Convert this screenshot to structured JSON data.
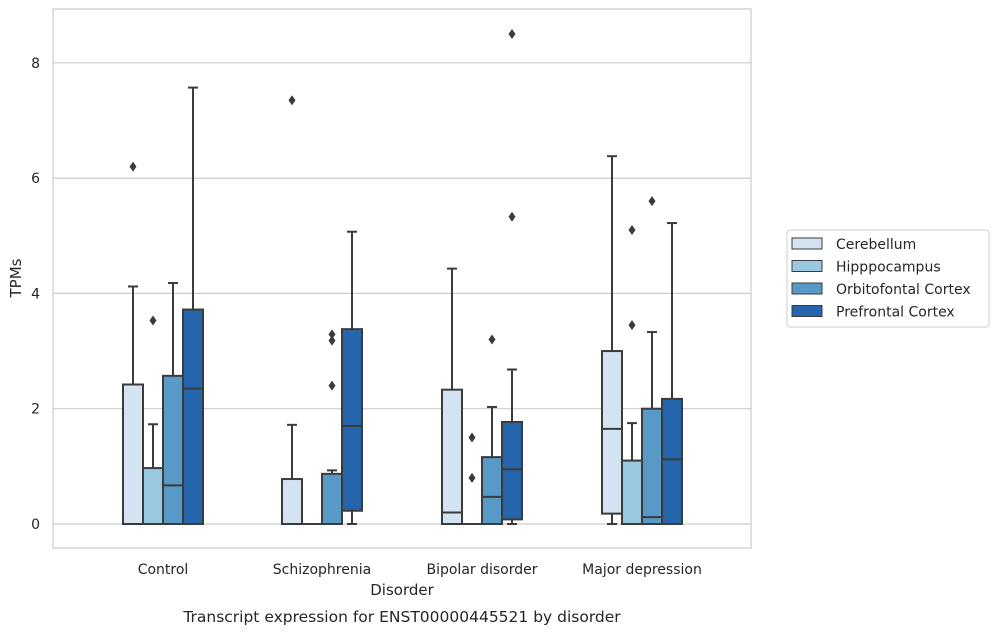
{
  "chart_data": {
    "type": "box",
    "title": "",
    "caption": "Transcript expression for ENST00000445521 by disorder",
    "xlabel": "Disorder",
    "ylabel": "TPMs",
    "ylim": [
      -0.42,
      8.95
    ],
    "yticks": [
      0,
      2,
      4,
      6,
      8
    ],
    "grid": true,
    "legend_position": "right",
    "categories": [
      "Control",
      "Schizophrenia",
      "Bipolar disorder",
      "Major depression"
    ],
    "series": [
      {
        "name": "Cerebellum",
        "color": "#d3e3f2",
        "boxes": [
          {
            "q1": 0,
            "median": 0,
            "q3": 2.42,
            "whisker_low": 0,
            "whisker_high": 4.12,
            "outliers": [
              6.2
            ]
          },
          {
            "q1": 0,
            "median": 0,
            "q3": 0.78,
            "whisker_low": 0,
            "whisker_high": 1.72,
            "outliers": [
              7.35
            ]
          },
          {
            "q1": 0,
            "median": 0.2,
            "q3": 2.33,
            "whisker_low": 0,
            "whisker_high": 4.43,
            "outliers": []
          },
          {
            "q1": 0.18,
            "median": 1.65,
            "q3": 3.0,
            "whisker_low": 0,
            "whisker_high": 6.38,
            "outliers": []
          }
        ]
      },
      {
        "name": "Hipppocampus",
        "color": "#9ac8e0",
        "boxes": [
          {
            "q1": 0,
            "median": 0,
            "q3": 0.97,
            "whisker_low": 0,
            "whisker_high": 1.73,
            "outliers": [
              3.53
            ]
          },
          {
            "q1": 0,
            "median": 0,
            "q3": 0,
            "whisker_low": 0,
            "whisker_high": 0,
            "outliers": []
          },
          {
            "q1": 0,
            "median": 0,
            "q3": 0,
            "whisker_low": 0,
            "whisker_high": 0,
            "outliers": [
              0.8,
              1.5
            ]
          },
          {
            "q1": 0,
            "median": 0,
            "q3": 1.1,
            "whisker_low": 0,
            "whisker_high": 1.75,
            "outliers": [
              3.45,
              5.1
            ]
          }
        ]
      },
      {
        "name": "Orbitofontal Cortex",
        "color": "#5799c7",
        "boxes": [
          {
            "q1": 0,
            "median": 0.67,
            "q3": 2.57,
            "whisker_low": 0,
            "whisker_high": 4.18,
            "outliers": []
          },
          {
            "q1": 0,
            "median": 0,
            "q3": 0.87,
            "whisker_low": 0,
            "whisker_high": 0.93,
            "outliers": [
              2.4,
              3.18,
              3.29
            ]
          },
          {
            "q1": 0,
            "median": 0.47,
            "q3": 1.16,
            "whisker_low": 0,
            "whisker_high": 2.03,
            "outliers": [
              3.2
            ]
          },
          {
            "q1": 0,
            "median": 0.12,
            "q3": 2.0,
            "whisker_low": 0,
            "whisker_high": 3.33,
            "outliers": [
              5.6
            ]
          }
        ]
      },
      {
        "name": "Prefrontal Cortex",
        "color": "#2565ab",
        "boxes": [
          {
            "q1": 0,
            "median": 2.35,
            "q3": 3.72,
            "whisker_low": 0,
            "whisker_high": 7.57,
            "outliers": []
          },
          {
            "q1": 0.23,
            "median": 1.7,
            "q3": 3.38,
            "whisker_low": 0,
            "whisker_high": 5.07,
            "outliers": []
          },
          {
            "q1": 0.08,
            "median": 0.95,
            "q3": 1.77,
            "whisker_low": 0,
            "whisker_high": 2.68,
            "outliers": [
              5.33,
              8.5
            ]
          },
          {
            "q1": 0,
            "median": 1.12,
            "q3": 2.17,
            "whisker_low": 0,
            "whisker_high": 5.22,
            "outliers": []
          }
        ]
      }
    ]
  }
}
